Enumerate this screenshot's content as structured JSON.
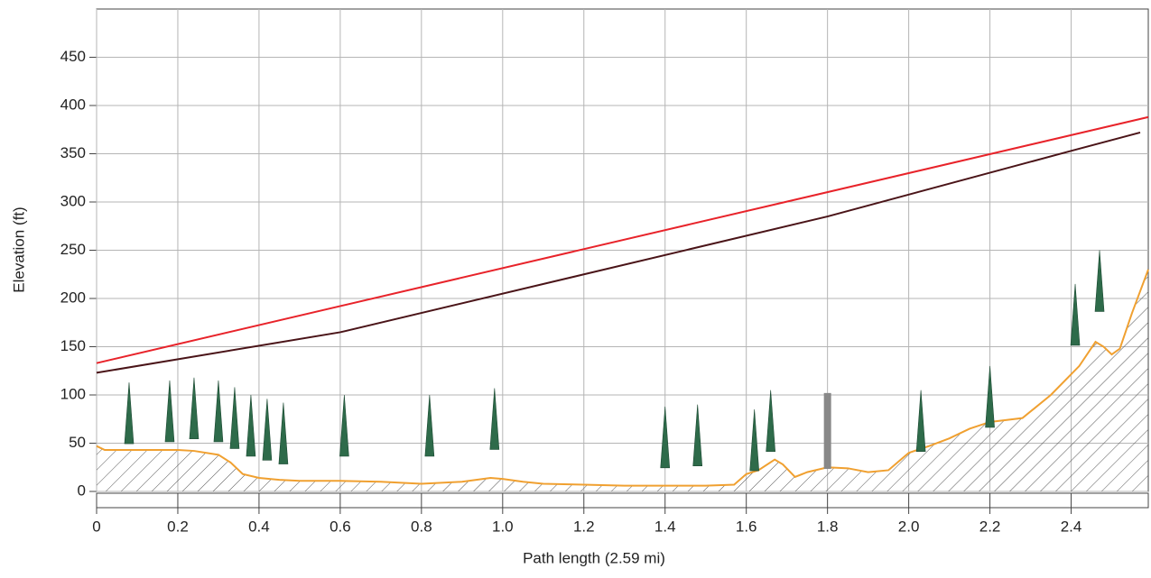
{
  "chart_data": {
    "type": "profile",
    "xlabel": "Path length (2.59 mi)",
    "ylabel": "Elevation (ft)",
    "xlim": [
      0,
      2.59
    ],
    "ylim": [
      0,
      500
    ],
    "xticks": [
      0,
      0.2,
      0.4,
      0.6,
      0.8,
      {
        "value": 1,
        "label": "1.0"
      },
      1.2,
      1.4,
      1.6,
      1.8,
      {
        "value": 2,
        "label": "2.0"
      },
      2.2,
      2.4
    ],
    "yticks": [
      0,
      50,
      100,
      150,
      200,
      250,
      300,
      350,
      400,
      450
    ],
    "grid": true,
    "series": [
      {
        "kind": "terrain",
        "color": "#f0a030",
        "x": [
          0,
          0.02,
          0.1,
          0.2,
          0.24,
          0.3,
          0.33,
          0.36,
          0.4,
          0.45,
          0.5,
          0.6,
          0.7,
          0.8,
          0.9,
          0.97,
          1.0,
          1.05,
          1.1,
          1.2,
          1.3,
          1.4,
          1.5,
          1.57,
          1.6,
          1.63,
          1.67,
          1.69,
          1.72,
          1.75,
          1.8,
          1.85,
          1.9,
          1.95,
          2.0,
          2.05,
          2.1,
          2.15,
          2.2,
          2.28,
          2.35,
          2.42,
          2.46,
          2.48,
          2.5,
          2.52,
          2.55,
          2.59
        ],
        "values": [
          47,
          43,
          43,
          43,
          42,
          38,
          30,
          18,
          14,
          12,
          11,
          11,
          10,
          8,
          10,
          14,
          13,
          10,
          8,
          7,
          6,
          6,
          6,
          7,
          18,
          22,
          33,
          28,
          15,
          20,
          25,
          24,
          20,
          22,
          40,
          47,
          55,
          65,
          72,
          76,
          100,
          130,
          155,
          150,
          142,
          148,
          185,
          230
        ]
      },
      {
        "kind": "line",
        "color": "#e8232a",
        "x": [
          0,
          2.59
        ],
        "values": [
          133,
          388
        ]
      },
      {
        "kind": "line",
        "color": "#4a1418",
        "x": [
          0,
          0.6,
          1.2,
          1.8,
          2.4,
          2.57
        ],
        "values": [
          123,
          165,
          225,
          285,
          353,
          372
        ]
      },
      {
        "kind": "trees",
        "color": "#2e6b4a",
        "x": [
          0.08,
          0.18,
          0.24,
          0.3,
          0.34,
          0.38,
          0.42,
          0.46,
          0.61,
          0.82,
          0.98,
          1.4,
          1.48,
          1.62,
          1.66,
          2.03,
          2.2,
          2.41,
          2.47
        ],
        "values": [
          113,
          115,
          118,
          115,
          108,
          100,
          96,
          92,
          100,
          100,
          107,
          88,
          90,
          85,
          105,
          105,
          130,
          215,
          250
        ]
      },
      {
        "kind": "building",
        "color": "#888888",
        "x": [
          1.8
        ],
        "values": [
          102
        ]
      }
    ]
  }
}
